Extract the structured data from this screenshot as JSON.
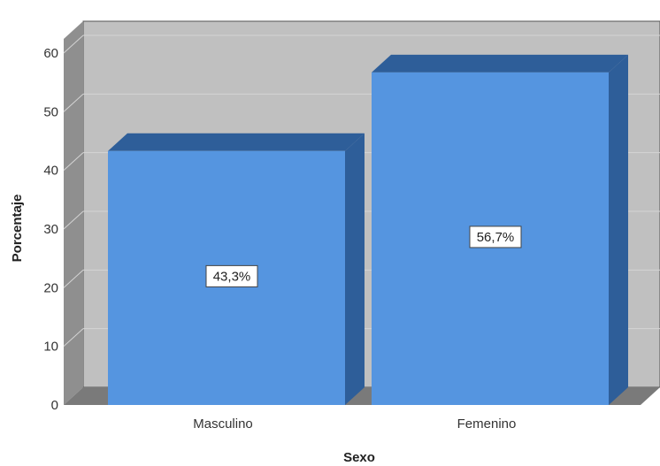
{
  "chart_data": {
    "type": "bar",
    "categories": [
      "Masculino",
      "Femenino"
    ],
    "values": [
      43.3,
      56.7
    ],
    "data_labels": [
      "43,3%",
      "56,7%"
    ],
    "xlabel": "Sexo",
    "ylabel": "Porcentaje",
    "ylim": [
      0,
      60
    ],
    "yticks": [
      "0",
      "10",
      "20",
      "30",
      "40",
      "50",
      "60"
    ],
    "grid": true,
    "three_d": true,
    "colors": {
      "bar_front": "#5595e0",
      "bar_side": "#2e5e99",
      "bar_top": "#2e5e99",
      "back_wall": "#c0c0c0",
      "side_wall": "#8f8f8f",
      "floor": "#7a7a7a",
      "gridline": "#d4d4d4",
      "label_box": "#ffffff"
    }
  }
}
